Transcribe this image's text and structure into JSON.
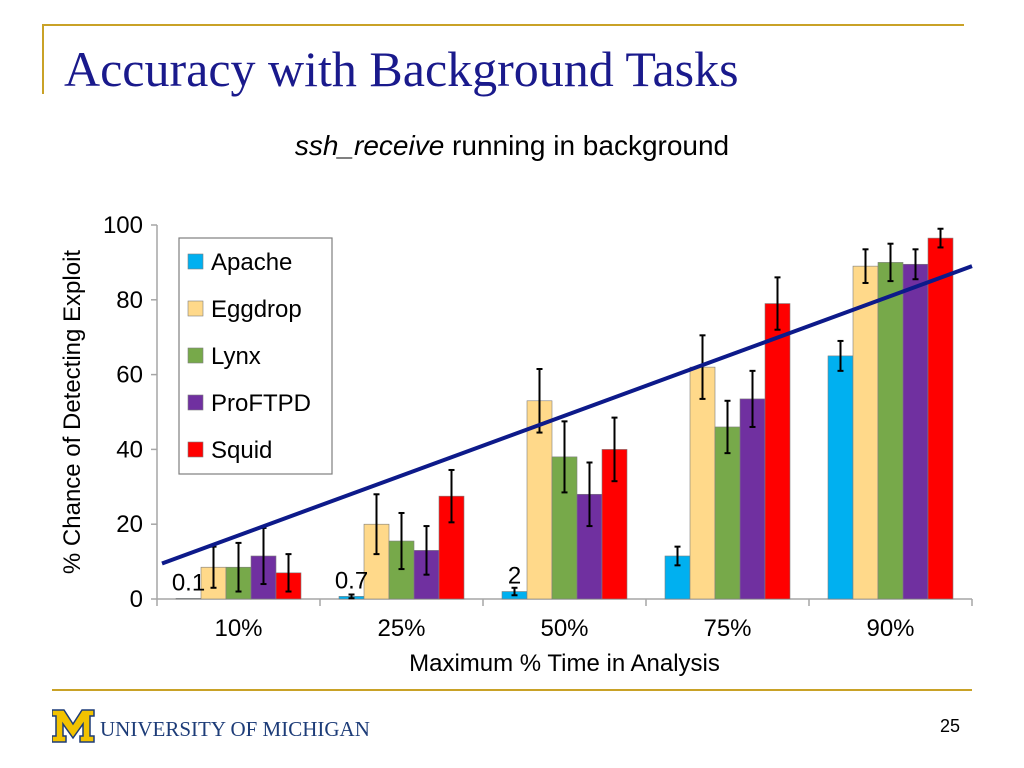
{
  "slide": {
    "title": "Accuracy with Background Tasks",
    "subtitle_em": "ssh_receive",
    "subtitle_rest": " running in background",
    "logo_text": "UNIVERSITY OF MICHIGAN",
    "page_number": "25"
  },
  "colors": {
    "title": "#1a1a8c",
    "rule": "#c9a227",
    "trendline": "#0d1a8a",
    "logo_block": "#f2c200",
    "logo_text": "#1d3c78"
  },
  "chart_data": {
    "type": "bar",
    "xlabel": "Maximum % Time in Analysis",
    "ylabel": "% Chance of Detecting Exploit",
    "categories": [
      "10%",
      "25%",
      "50%",
      "75%",
      "90%"
    ],
    "ylim": [
      0,
      100
    ],
    "yticks": [
      0,
      20,
      40,
      60,
      80,
      100
    ],
    "grid": false,
    "legend_position": "top-left",
    "series": [
      {
        "name": "Apache",
        "color": "#00b0f0",
        "values": [
          0.1,
          0.7,
          2,
          11.5,
          65
        ],
        "errors": [
          0,
          0.5,
          1,
          2.5,
          4
        ]
      },
      {
        "name": "Eggdrop",
        "color": "#ffd98a",
        "values": [
          8.5,
          20,
          53,
          62,
          89
        ],
        "errors": [
          5.5,
          8,
          8.5,
          8.5,
          4.5
        ]
      },
      {
        "name": "Lynx",
        "color": "#77a94a",
        "values": [
          8.5,
          15.5,
          38,
          46,
          90
        ],
        "errors": [
          6.5,
          7.5,
          9.5,
          7,
          5
        ]
      },
      {
        "name": "ProFTPD",
        "color": "#7030a0",
        "values": [
          11.5,
          13,
          28,
          53.5,
          89.5
        ],
        "errors": [
          7.5,
          6.5,
          8.5,
          7.5,
          4
        ]
      },
      {
        "name": "Squid",
        "color": "#ff0000",
        "values": [
          7,
          27.5,
          40,
          79,
          96.5
        ],
        "errors": [
          5,
          7,
          8.5,
          7,
          2.5
        ]
      }
    ],
    "data_labels": [
      {
        "text": "0.1",
        "series": "Apache",
        "category": "10%"
      },
      {
        "text": "0.7",
        "series": "Apache",
        "category": "25%"
      },
      {
        "text": "2",
        "series": "Apache",
        "category": "50%"
      }
    ],
    "trendline": {
      "from": {
        "category": "10%",
        "y": 9.5
      },
      "to": {
        "category": "90%",
        "y": 89
      }
    }
  }
}
